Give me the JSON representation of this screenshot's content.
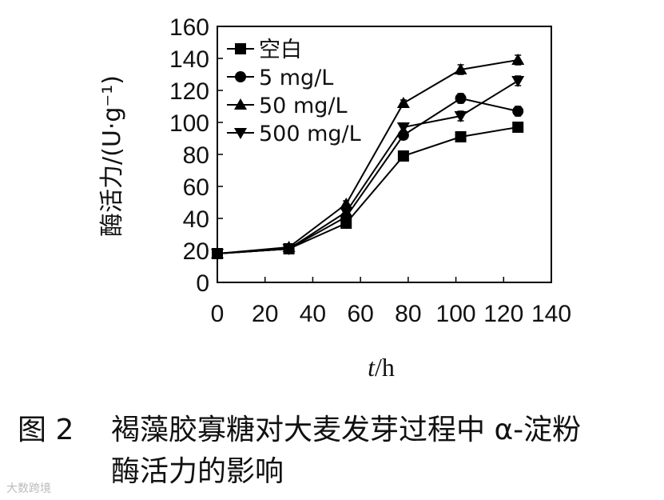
{
  "caption": {
    "label": "图 2",
    "text_line1": "褐藻胶寡糖对大麦发芽过程中 α-淀粉",
    "text_line2": "酶活力的影响"
  },
  "watermark": "大数跨境",
  "chart_data": {
    "type": "line",
    "ylabel": "酶活力/(U·g⁻¹)",
    "xlabel_italic": "t",
    "xlabel_unit": "/h",
    "xlim": [
      0,
      140
    ],
    "ylim": [
      0,
      160
    ],
    "xticks": [
      0,
      20,
      40,
      60,
      80,
      100,
      120,
      140
    ],
    "yticks": [
      0,
      20,
      40,
      60,
      80,
      100,
      120,
      140,
      160
    ],
    "grid": false,
    "legend_position": "top-left",
    "series": [
      {
        "name": "空白",
        "marker": "square",
        "x": [
          0,
          30,
          54,
          78,
          102,
          126
        ],
        "y": [
          18,
          21,
          37,
          79,
          91,
          97
        ],
        "err": [
          1,
          1,
          2,
          2,
          3,
          3
        ]
      },
      {
        "name": "5 mg/L",
        "marker": "circle",
        "x": [
          0,
          30,
          54,
          78,
          102,
          126
        ],
        "y": [
          18,
          21,
          41,
          92,
          115,
          107
        ],
        "err": [
          1,
          1,
          2,
          2,
          3,
          3
        ]
      },
      {
        "name": "50 mg/L",
        "marker": "triangle-up",
        "x": [
          0,
          30,
          54,
          78,
          102,
          126
        ],
        "y": [
          18,
          22,
          49,
          112,
          133,
          139
        ],
        "err": [
          1,
          1,
          2,
          2,
          3,
          3
        ]
      },
      {
        "name": "500 mg/L",
        "marker": "triangle-down",
        "x": [
          0,
          30,
          54,
          78,
          102,
          126
        ],
        "y": [
          18,
          21,
          44,
          97,
          104,
          126
        ],
        "err": [
          1,
          1,
          2,
          2,
          3,
          3
        ]
      }
    ]
  }
}
